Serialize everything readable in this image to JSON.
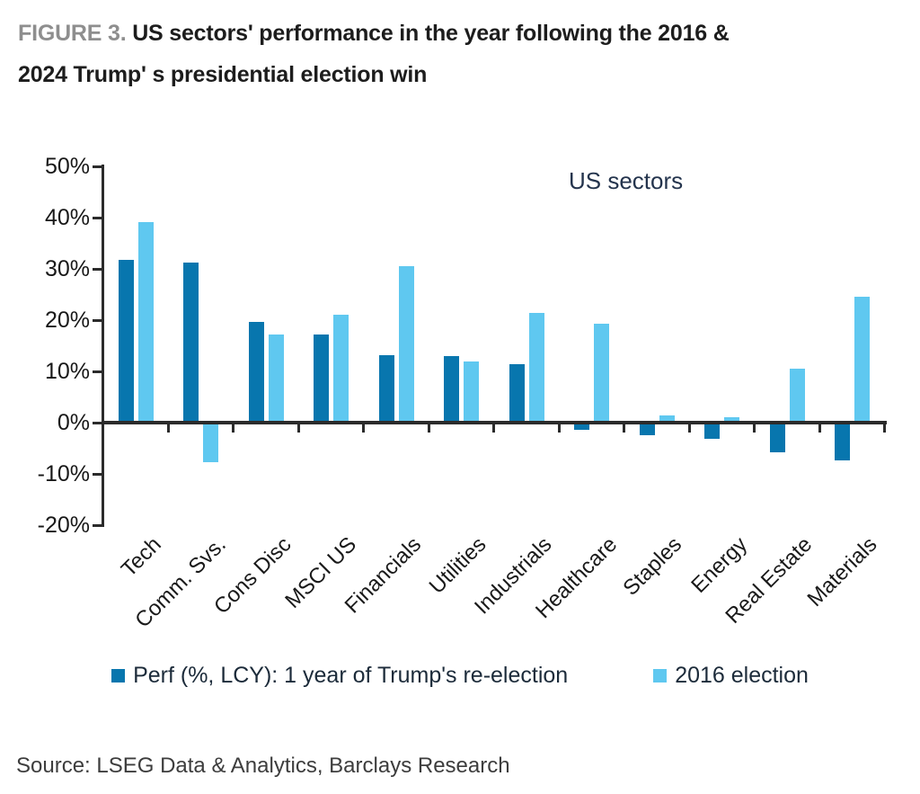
{
  "title": {
    "label": "FIGURE 3.",
    "line1_rest": "US sectors' performance in the year following the 2016 &",
    "line2": "2024 Trump' s presidential election win"
  },
  "source": "Source: LSEG Data & Analytics, Barclays Research",
  "colors": {
    "dark_blue": "#0876ae",
    "light_blue": "#5fc8f0",
    "axis": "#2b2b2b",
    "figure_label_gray": "#8e8e8e"
  },
  "chart_data": {
    "type": "bar",
    "title": "US sectors",
    "categories": [
      "Tech",
      "Comm. Svs.",
      "Cons Disc",
      "MSCI US",
      "Financials",
      "Utilities",
      "Industrials",
      "Healthcare",
      "Staples",
      "Energy",
      "Real Estate",
      "Materials"
    ],
    "series": [
      {
        "name": "Perf (%, LCY): 1 year of Trump's re-election",
        "color": "#0876ae",
        "values": [
          31.5,
          31,
          19.5,
          17,
          13,
          12.8,
          11.2,
          -1.2,
          -2.3,
          -3,
          -5.6,
          -7.2
        ]
      },
      {
        "name": "2016 election",
        "color": "#5fc8f0",
        "values": [
          39,
          -7.5,
          17,
          20.8,
          30.3,
          11.8,
          21.2,
          19.2,
          1.3,
          0.8,
          10.3,
          24.3
        ]
      }
    ],
    "ylim": [
      -20,
      50
    ],
    "ytick_step": 10,
    "ytick_labels": [
      "50%",
      "40%",
      "30%",
      "20%",
      "10%",
      "0%",
      "-10%",
      "-20%"
    ],
    "unit": "percent",
    "grid": false,
    "legend_position": "bottom"
  }
}
